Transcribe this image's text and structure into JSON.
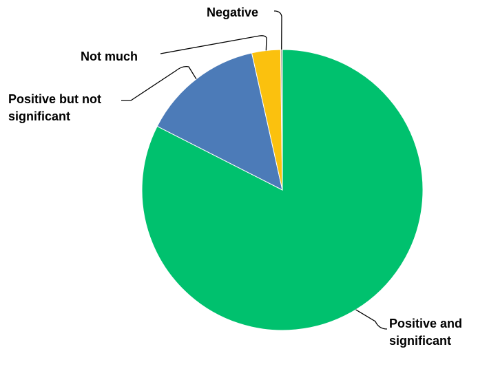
{
  "chart_data": {
    "type": "pie",
    "title": "",
    "series": [
      {
        "categories": [
          "Positive and significant",
          "Positive but not significant",
          "Not much",
          "Negative"
        ],
        "values": [
          82.5,
          14.0,
          3.3,
          0.2
        ]
      }
    ],
    "labels": [
      {
        "lines": [
          "Positive and",
          "significant"
        ]
      },
      {
        "lines": [
          "Positive but not",
          "significant"
        ]
      },
      {
        "lines": [
          "Not much"
        ]
      },
      {
        "lines": [
          "Negative"
        ]
      }
    ],
    "colors": [
      "#00C16E",
      "#4C7BB8",
      "#FBC10E",
      "#AAAAAA"
    ],
    "start_angle": "12 o'clock",
    "direction": "clockwise",
    "legend": "none"
  }
}
